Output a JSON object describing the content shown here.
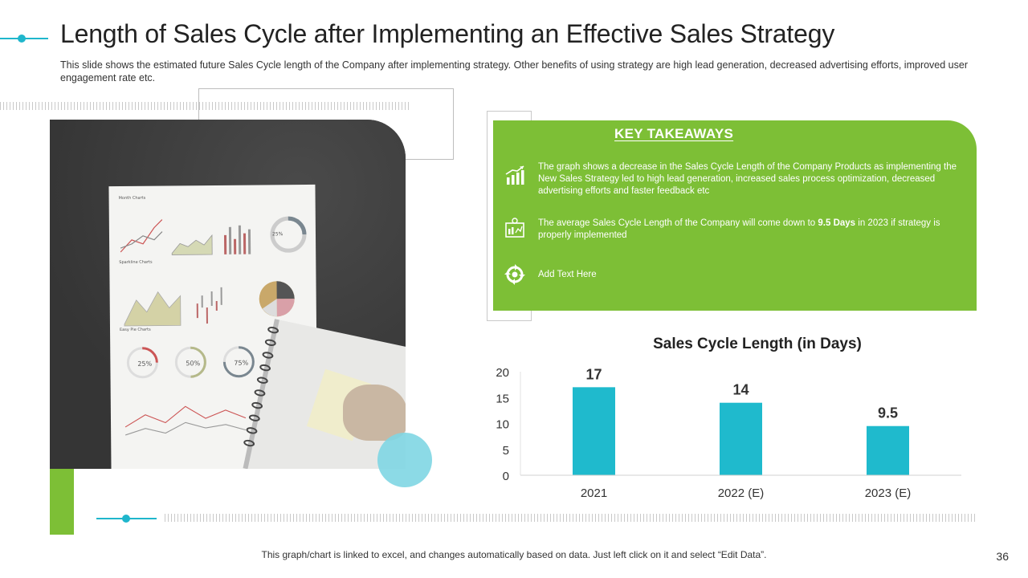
{
  "slide": {
    "title": "Length of Sales Cycle after Implementing an Effective Sales Strategy",
    "subtitle": "This slide shows the estimated future Sales Cycle length of the Company after implementing strategy. Other benefits of using strategy are high lead generation, decreased advertising efforts, improved user engagement rate etc.",
    "footer_note": "This graph/chart is linked to excel, and changes automatically based on data. Just left click on it and select “Edit Data”.",
    "page_number": "36"
  },
  "photo_paper": {
    "heading1": "Month Charts",
    "heading2": "Sparkline Charts",
    "heading3": "Easy Pie Charts",
    "donut_top": "25%",
    "donut_labels": [
      "25%",
      "50%",
      "75%"
    ]
  },
  "takeaways": {
    "title": "KEY TAKEAWAYS",
    "items": [
      {
        "icon": "growth-chart-icon",
        "text": "The graph shows a decrease in the Sales Cycle Length of the Company  Products as implementing the New Sales Strategy led to high lead generation, increased sales process optimization, decreased advertising efforts and faster feedback etc"
      },
      {
        "icon": "report-icon",
        "text_before": "The average Sales Cycle Length of the Company  will come down to ",
        "text_bold": "9.5 Days",
        "text_after": " in 2023 if strategy is properly implemented"
      },
      {
        "icon": "cycle-icon",
        "text": "Add Text Here"
      }
    ]
  },
  "chart_data": {
    "type": "bar",
    "title": "Sales Cycle Length (in Days)",
    "categories": [
      "2021",
      "2022 (E)",
      "2023 (E)"
    ],
    "values": [
      17,
      14,
      9.5
    ],
    "data_labels": [
      "17",
      "14",
      "9.5"
    ],
    "ylim": [
      0,
      20
    ],
    "yticks": [
      "0",
      "5",
      "10",
      "15",
      "20"
    ],
    "xlabel": "",
    "ylabel": "",
    "grid": false,
    "legend": "none",
    "bar_color": "#1fbacd"
  },
  "colors": {
    "accent_green": "#7dbf36",
    "accent_teal": "#1fb6cc"
  }
}
